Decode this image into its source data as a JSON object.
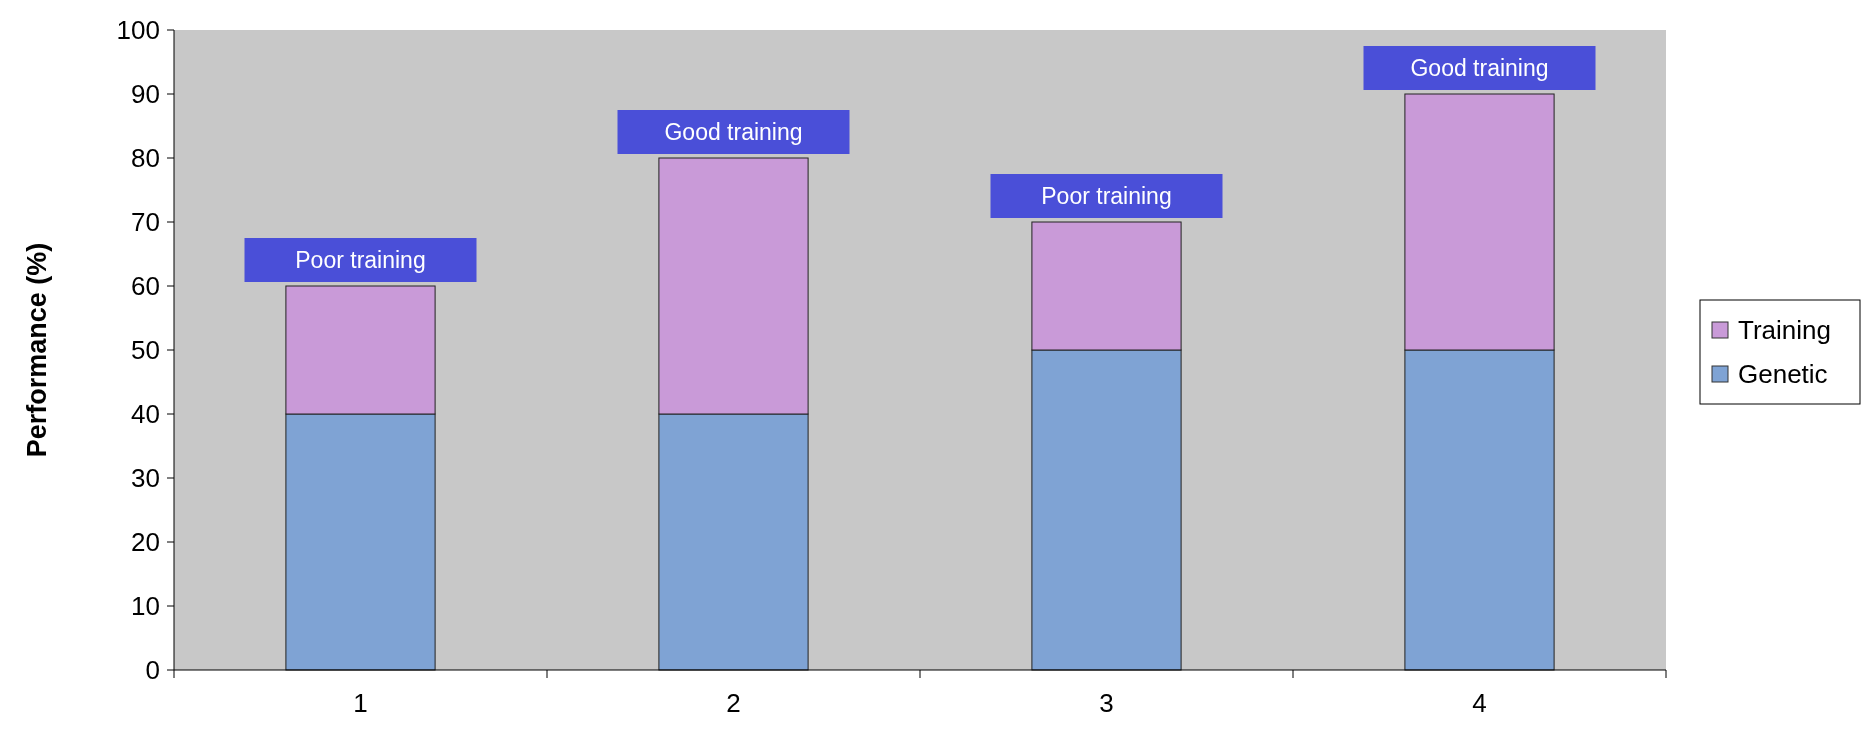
{
  "chart_data": {
    "type": "bar",
    "stacked": true,
    "ylabel": "Performance (%)",
    "categories": [
      "1",
      "2",
      "3",
      "4"
    ],
    "series": [
      {
        "name": "Genetic",
        "color": "#7fa3d4",
        "values": [
          40,
          40,
          50,
          50
        ]
      },
      {
        "name": "Training",
        "color": "#c99ad8",
        "values": [
          20,
          40,
          20,
          40
        ]
      }
    ],
    "ylim": [
      0,
      100
    ],
    "yticks": [
      0,
      10,
      20,
      30,
      40,
      50,
      60,
      70,
      80,
      90,
      100
    ],
    "legend": "right",
    "grid": false,
    "annotations": [
      {
        "text": "Poor training",
        "x": "1",
        "y": 60
      },
      {
        "text": "Good training",
        "x": "2",
        "y": 80
      },
      {
        "text": "Poor training",
        "x": "3",
        "y": 70
      },
      {
        "text": "Good training",
        "x": "4",
        "y": 90
      }
    ]
  }
}
